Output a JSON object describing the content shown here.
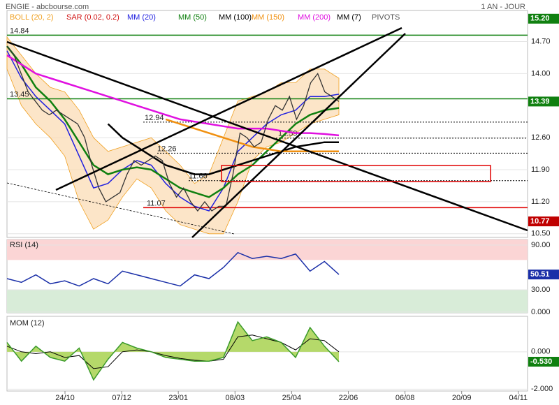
{
  "header": {
    "title": "ENGIE - abcbourse.com",
    "period": "1 AN - JOUR"
  },
  "dates": [
    "24/10",
    "07/12",
    "23/01",
    "08/03",
    "25/04",
    "22/06",
    "06/08",
    "20/09",
    "04/11"
  ],
  "chart_data": [
    {
      "type": "candlestick",
      "price": {
        "color": "#333333",
        "values": [
          14.6,
          14.4,
          14.0,
          13.6,
          13.4,
          13.2,
          13.1,
          13.2,
          13.1,
          13.0,
          12.9,
          12.6,
          12.0,
          11.5,
          11.2,
          11.3,
          11.4,
          11.8,
          12.1,
          12.0,
          12.1,
          12.2,
          12.1,
          11.6,
          11.3,
          11.5,
          11.2,
          11.0,
          11.2,
          11.0,
          11.1,
          11.1,
          11.8,
          12.7,
          12.6,
          12.4,
          12.5,
          13.0,
          13.3,
          13.2,
          13.5,
          13.0,
          13.3,
          13.8,
          14.0,
          13.6,
          13.5,
          13.39
        ]
      },
      "legend": [
        {
          "name": "BOLL (20, 2)",
          "color": "#f0a020",
          "upper": [
            14.8,
            14.4,
            14.0,
            13.7,
            13.6,
            13.2,
            12.6,
            12.3,
            12.4,
            12.5,
            12.6,
            12.3,
            12.0,
            11.6,
            11.8,
            12.6,
            13.4,
            13.5,
            13.6,
            13.8,
            13.8,
            14.1,
            14.1,
            13.9
          ],
          "lower": [
            14.1,
            13.3,
            12.9,
            12.6,
            12.2,
            11.2,
            10.6,
            10.8,
            11.3,
            11.7,
            11.5,
            11.0,
            10.7,
            10.6,
            10.5,
            10.5,
            11.2,
            12.1,
            12.4,
            12.5,
            12.7,
            12.9,
            13.0,
            13.1
          ]
        },
        {
          "name": "SAR (0.02, 0.2)",
          "color": "#d01010"
        },
        {
          "name": "MM (20)",
          "color": "#2020e0",
          "values": [
            14.5,
            13.9,
            13.5,
            13.2,
            12.9,
            12.2,
            11.5,
            11.6,
            11.9,
            12.1,
            12.0,
            11.6,
            11.3,
            11.1,
            11.0,
            11.5,
            12.3,
            12.6,
            12.9,
            13.1,
            13.2,
            13.5,
            13.5,
            13.55
          ]
        },
        {
          "name": "MM (50)",
          "color": "#108010",
          "values": [
            14.6,
            14.2,
            13.7,
            13.4,
            13.0,
            12.5,
            12.0,
            11.8,
            11.9,
            11.95,
            11.9,
            11.7,
            11.5,
            11.4,
            11.3,
            11.5,
            11.8,
            12.0,
            12.3,
            12.6,
            12.9,
            13.1,
            13.2,
            13.25
          ]
        },
        {
          "name": "MM (100)",
          "color": "#000000",
          "values": [
            null,
            null,
            null,
            null,
            null,
            null,
            null,
            12.9,
            12.6,
            12.4,
            12.2,
            12.0,
            11.9,
            11.8,
            11.8,
            11.9,
            12.0,
            12.1,
            12.2,
            12.3,
            12.4,
            12.45,
            12.5,
            12.5
          ]
        },
        {
          "name": "MM (150)",
          "color": "#f09010",
          "values": [
            null,
            null,
            null,
            null,
            null,
            null,
            null,
            null,
            null,
            null,
            null,
            13.0,
            12.9,
            12.8,
            12.7,
            12.6,
            12.5,
            12.4,
            12.35,
            12.3,
            12.3,
            12.3,
            12.3,
            12.3
          ]
        },
        {
          "name": "MM (200)",
          "color": "#e010e0",
          "values": [
            14.4,
            14.2,
            14.0,
            13.9,
            13.8,
            13.7,
            13.6,
            13.5,
            13.4,
            13.3,
            13.2,
            13.1,
            13.0,
            12.95,
            12.9,
            12.85,
            12.8,
            12.8,
            12.8,
            12.75,
            12.7,
            12.7,
            12.68,
            12.65
          ]
        },
        {
          "name": "MM (7)",
          "color": "#000000"
        },
        {
          "name": "PIVOTS",
          "color": "#555555",
          "levels": [
            {
              "value": 14.84,
              "color": "#108010"
            },
            {
              "value": 13.45,
              "color": "#108010"
            },
            {
              "value": 12.94,
              "color": "#000000"
            },
            {
              "value": 12.59,
              "color": "#000000"
            },
            {
              "value": 12.26,
              "color": "#000000"
            },
            {
              "value": 11.66,
              "color": "#000000"
            },
            {
              "value": 11.07,
              "color": "#e00000"
            }
          ]
        }
      ],
      "ylim": [
        10.42,
        15.38
      ],
      "yticks": [
        {
          "value": 14.7,
          "label": "14.70"
        },
        {
          "value": 14.0,
          "label": "14.00"
        },
        {
          "value": 12.6,
          "label": "12.60"
        },
        {
          "value": 11.9,
          "label": "11.90"
        },
        {
          "value": 11.2,
          "label": "11.20"
        },
        {
          "value": 10.5,
          "label": "10.50"
        }
      ],
      "markers": [
        {
          "value": 15.2,
          "label": "15.20",
          "color": "#108010"
        },
        {
          "value": 13.39,
          "color": "#108010"
        },
        {
          "value": 10.77,
          "color": "#c00000"
        }
      ]
    },
    {
      "type": "line",
      "title": "RSI (14)",
      "color": "#1a2fa8",
      "values": [
        45,
        40,
        50,
        38,
        42,
        35,
        45,
        38,
        55,
        50,
        45,
        40,
        35,
        50,
        45,
        60,
        80,
        72,
        75,
        72,
        78,
        55,
        68,
        50.51
      ],
      "ylim": [
        -1,
        97.5
      ],
      "yticks": [
        {
          "value": 90,
          "label": "90.00"
        },
        {
          "value": 30,
          "label": "30.00"
        },
        {
          "value": 0,
          "label": "0.000"
        }
      ],
      "bands": [
        {
          "from": 70,
          "to": 97.5,
          "color": "#fbd5d5"
        },
        {
          "from": -1,
          "to": 30,
          "color": "#d8ecd8"
        }
      ],
      "markers": [
        {
          "value": 50.51,
          "color": "#1a2fa8"
        }
      ]
    },
    {
      "type": "area",
      "title": "MOM (12)",
      "color": "#3a9a2a",
      "fill": "#b5d96a",
      "values": [
        0.5,
        -0.5,
        0.3,
        -0.3,
        -0.5,
        0.2,
        -1.5,
        -0.4,
        0.5,
        0.2,
        0,
        -0.3,
        -0.4,
        -0.5,
        -0.5,
        -0.3,
        1.6,
        0.6,
        0.8,
        0.5,
        -0.3,
        1.3,
        0.3,
        -0.53
      ],
      "signal": {
        "color": "#000000",
        "values": [
          0.3,
          0,
          -0.1,
          0,
          -0.3,
          -0.2,
          -0.9,
          -0.8,
          0,
          0.1,
          0,
          -0.2,
          -0.35,
          -0.45,
          -0.5,
          -0.4,
          0.8,
          0.9,
          0.7,
          0.5,
          0.1,
          0.7,
          0.6,
          0
        ]
      },
      "ylim": [
        -2.1,
        1.9
      ],
      "yticks": [
        {
          "value": 0,
          "label": "0.000"
        },
        {
          "value": -2,
          "label": "-2.000"
        }
      ],
      "markers": [
        {
          "value": -0.53,
          "label": "-0.530",
          "color": "#108010"
        }
      ]
    }
  ]
}
